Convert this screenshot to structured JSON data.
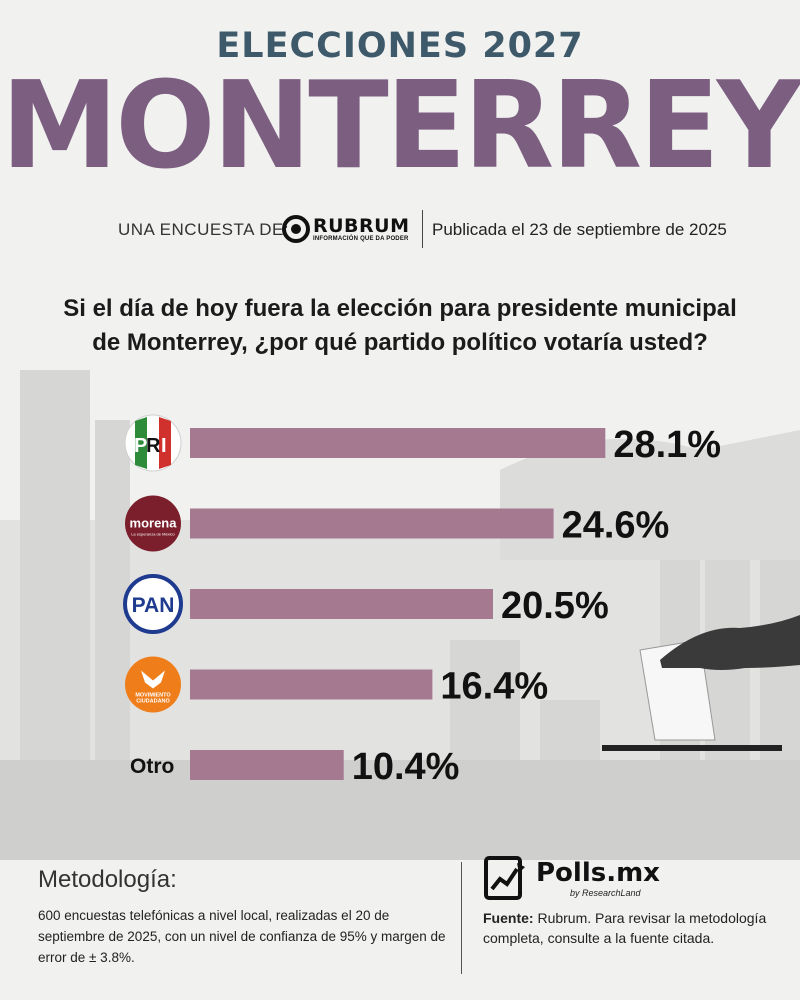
{
  "header": {
    "eyebrow": "ELECCIONES 2027",
    "city": "MONTERREY"
  },
  "byline": {
    "label": "UNA ENCUESTA DE:",
    "brand": "RUBRUM",
    "brand_tagline": "INFORMACIÓN QUE DA PODER",
    "published": "Publicada el 23 de septiembre de 2025"
  },
  "question": "Si el día de hoy fuera la elección para presidente municipal de Monterrey, ¿por qué partido político votaría usted?",
  "chart_data": {
    "type": "bar",
    "orientation": "horizontal",
    "categories": [
      "PRI",
      "morena",
      "PAN",
      "MOVIMIENTO CIUDADANO",
      "Otro"
    ],
    "values": [
      28.1,
      24.6,
      20.5,
      16.4,
      10.4
    ],
    "value_labels": [
      "28.1%",
      "24.6%",
      "20.5%",
      "16.4%",
      "10.4%"
    ],
    "bar_color": "#a57a91",
    "logo_text": {
      "pri": [
        "P",
        "R",
        "I"
      ],
      "morena": "morena",
      "morena_sub": "La esperanza de México",
      "pan": "PAN",
      "mc": [
        "MOVIMIENTO",
        "CIUDADANO"
      ]
    },
    "other_label": "Otro",
    "title": "",
    "xlabel": "",
    "ylabel": ""
  },
  "methodology": {
    "title": "Metodología:",
    "text": "600 encuestas telefónicas a nivel local, realizadas el 20 de septiembre de 2025, con un nivel de confianza de 95% y margen de error de ± 3.8%."
  },
  "footer": {
    "brand": "Polls.mx",
    "brand_sub": "by ResearchLand",
    "source_label": "Fuente:",
    "source_text": " Rubrum. Para revisar la metodología completa, consulte a la fuente citada."
  },
  "colors": {
    "eyebrow": "#3e5a6a",
    "city": "#7c5f80",
    "bar": "#a57a91",
    "pri_green": "#2e8b3a",
    "pri_red": "#d0312d",
    "morena": "#7a1f2b",
    "pan": "#1f3b8f",
    "mc": "#ef7d1a"
  }
}
